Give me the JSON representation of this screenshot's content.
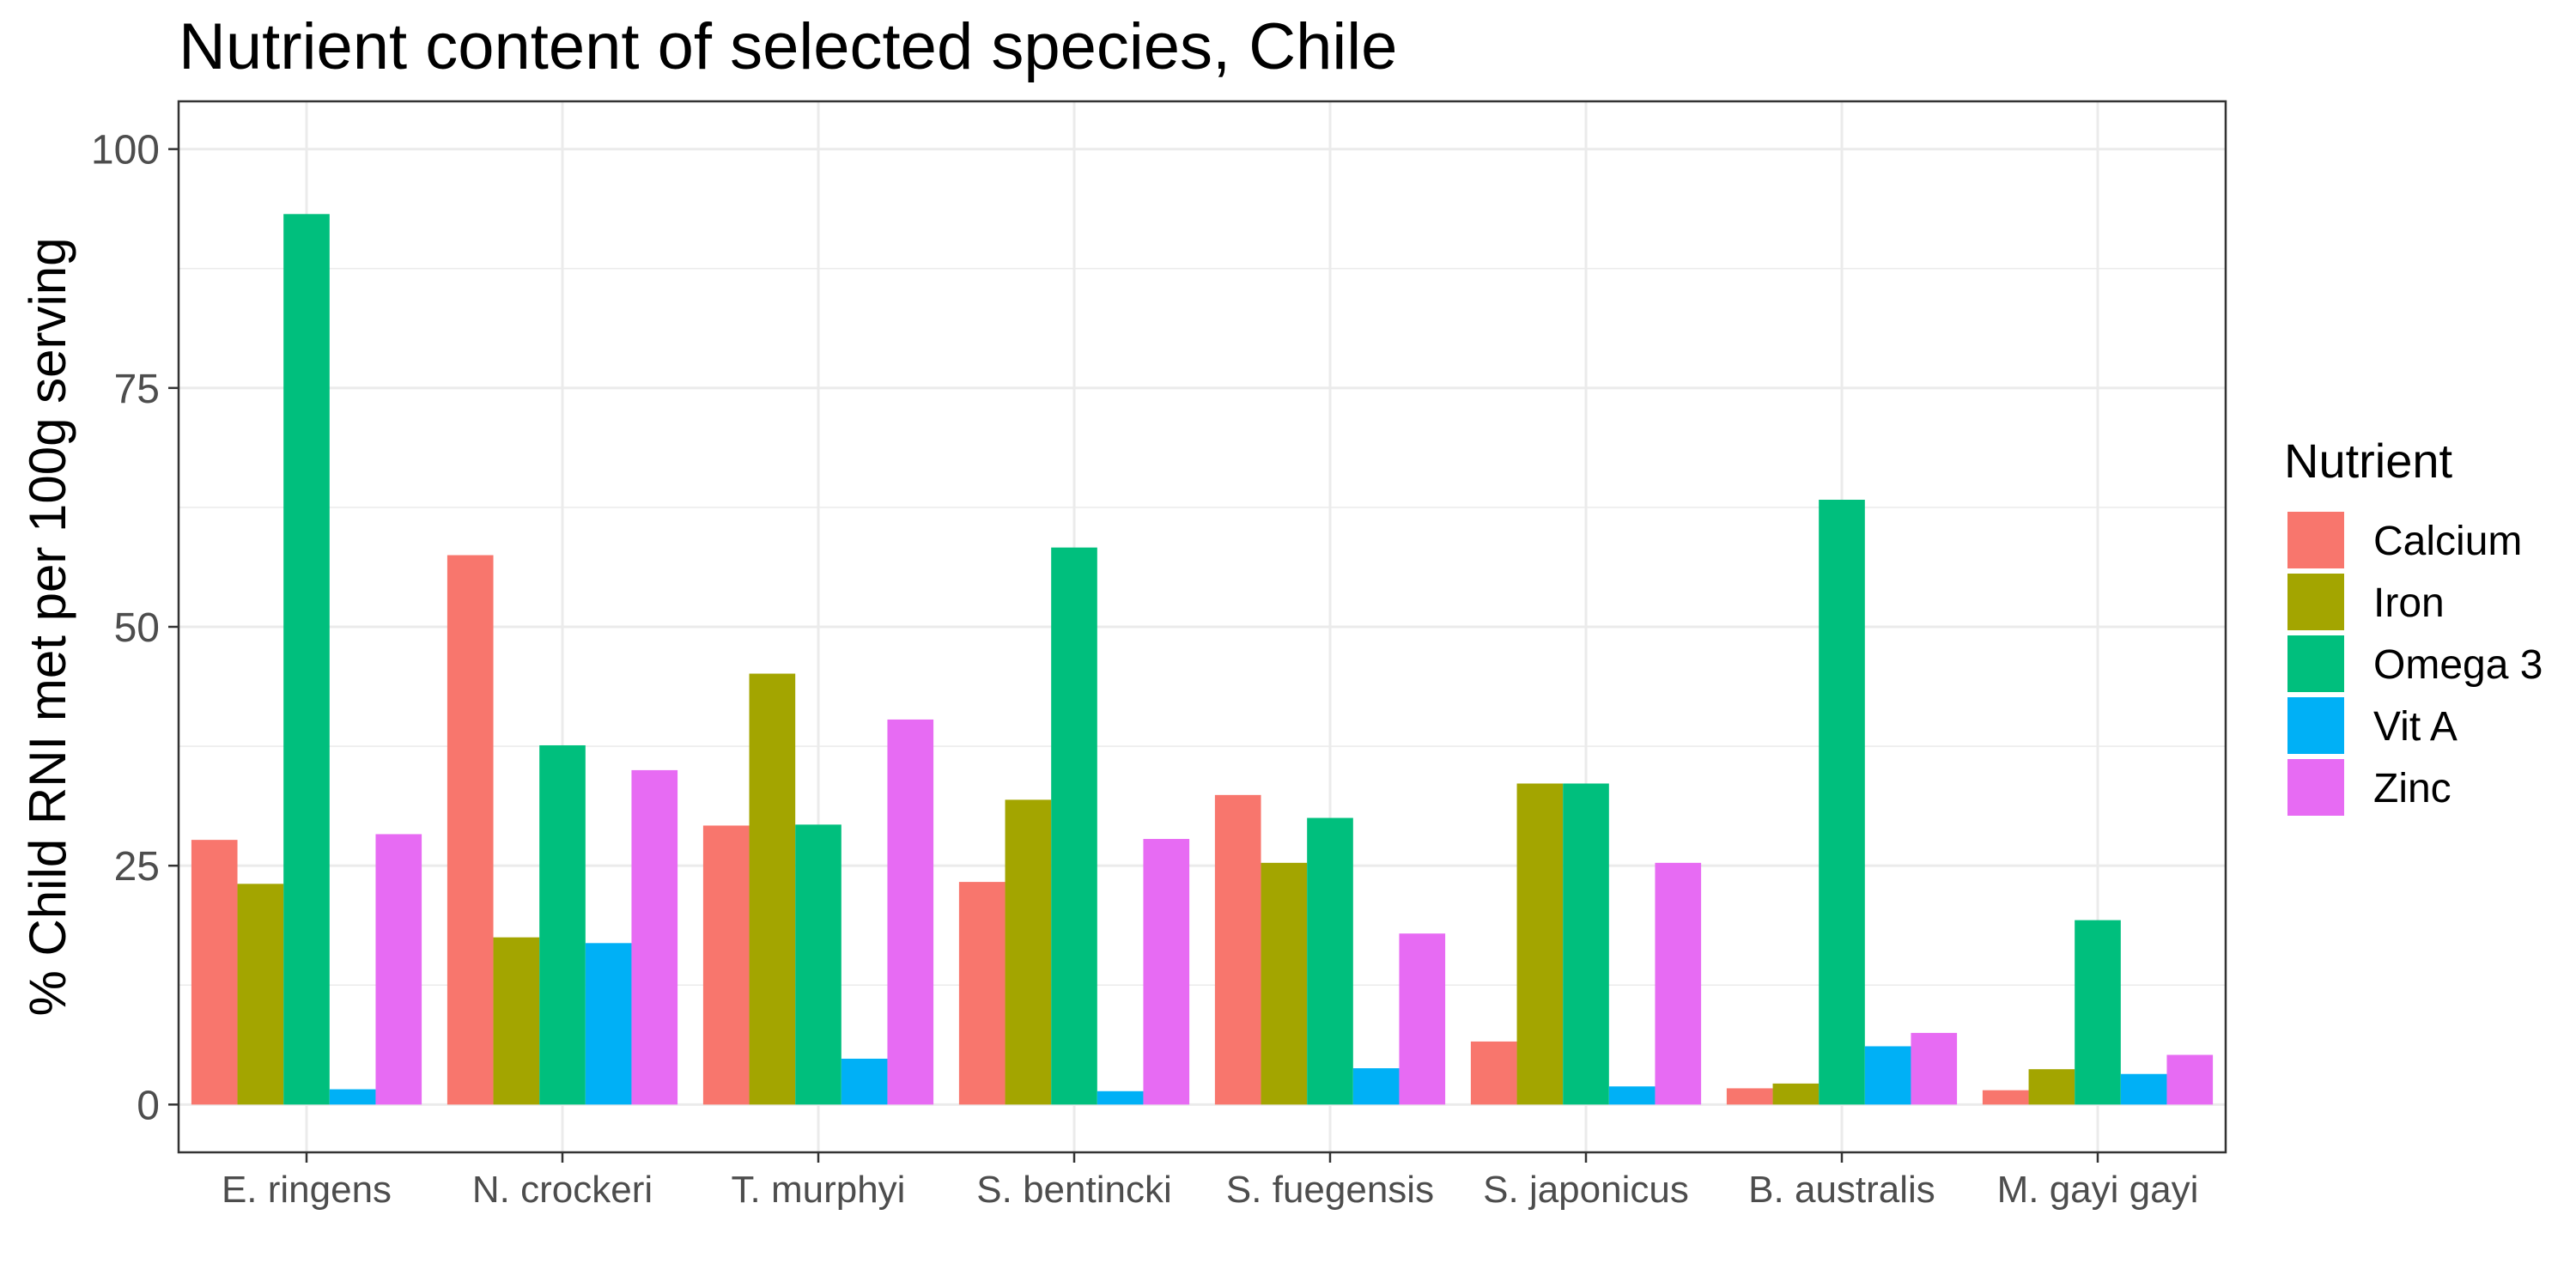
{
  "chart_data": {
    "type": "bar",
    "title": "Nutrient content of selected species, Chile",
    "xlabel": "",
    "ylabel": "% Child RNI met per 100g serving",
    "ylim": [
      -5,
      105
    ],
    "yticks": [
      0,
      25,
      50,
      75,
      100
    ],
    "grid": true,
    "legend_position": "right",
    "legend_title": "Nutrient",
    "categories": [
      "E. ringens",
      "N. crockeri",
      "T. murphyi",
      "S. bentincki",
      "S. fuegensis",
      "S. japonicus",
      "B. australis",
      "M. gayi gayi"
    ],
    "series": [
      {
        "name": "Calcium",
        "color": "#F8766D",
        "values": [
          27.7,
          57.5,
          29.2,
          23.3,
          32.4,
          6.6,
          1.7,
          1.5
        ]
      },
      {
        "name": "Iron",
        "color": "#A3A500",
        "values": [
          23.1,
          17.5,
          45.1,
          31.9,
          25.3,
          33.6,
          2.2,
          3.7
        ]
      },
      {
        "name": "Omega 3",
        "color": "#00BF7D",
        "values": [
          93.2,
          37.6,
          29.3,
          58.3,
          30.0,
          33.6,
          63.3,
          19.3
        ]
      },
      {
        "name": "Vit A",
        "color": "#00B0F6",
        "values": [
          1.6,
          16.9,
          4.8,
          1.4,
          3.8,
          1.9,
          6.1,
          3.2
        ]
      },
      {
        "name": "Zinc",
        "color": "#E76BF3",
        "values": [
          28.3,
          35.0,
          40.3,
          27.8,
          17.9,
          25.3,
          7.5,
          5.2
        ]
      }
    ]
  }
}
